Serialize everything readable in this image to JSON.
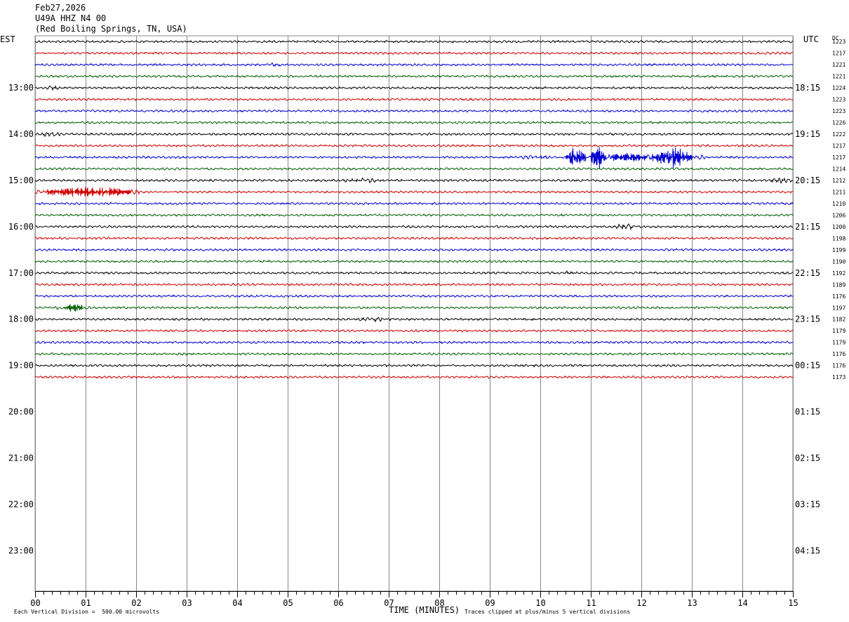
{
  "header": {
    "date": "Feb27,2026",
    "station": "U49A HHZ N4 00",
    "location": "(Red Boiling Springs, TN, USA)"
  },
  "left_tz_label": "EST",
  "right_tz_label": "UTC",
  "dc_label": "DC",
  "footer": {
    "xlabel": "TIME (MINUTES)",
    "scale_note": "Each Vertical Division =  500.00 microvolts",
    "clip_note": "Traces clipped at plus/minus 5 vertical divisions"
  },
  "colors": {
    "trace_cycle": [
      "#000000",
      "#d00000",
      "#0000d0",
      "#006000"
    ],
    "grid": "#888888"
  },
  "chart_data": {
    "type": "line",
    "title": "U49A HHZ N4 00",
    "xlabel": "TIME (MINUTES)",
    "x_ticks": [
      "00",
      "01",
      "02",
      "03",
      "04",
      "05",
      "06",
      "07",
      "08",
      "09",
      "10",
      "11",
      "12",
      "13",
      "14",
      "15"
    ],
    "xlim": [
      0,
      15
    ],
    "left_hour_labels": [
      {
        "row": 4,
        "label": "13:00"
      },
      {
        "row": 8,
        "label": "14:00"
      },
      {
        "row": 12,
        "label": "15:00"
      },
      {
        "row": 16,
        "label": "16:00"
      },
      {
        "row": 20,
        "label": "17:00"
      },
      {
        "row": 24,
        "label": "18:00"
      },
      {
        "row": 28,
        "label": "19:00"
      },
      {
        "row": 32,
        "label": "20:00"
      },
      {
        "row": 36,
        "label": "21:00"
      },
      {
        "row": 40,
        "label": "22:00"
      },
      {
        "row": 44,
        "label": "23:00"
      }
    ],
    "right_hour_labels": [
      {
        "row": 4,
        "label": "18:15"
      },
      {
        "row": 8,
        "label": "19:15"
      },
      {
        "row": 12,
        "label": "20:15"
      },
      {
        "row": 16,
        "label": "21:15"
      },
      {
        "row": 20,
        "label": "22:15"
      },
      {
        "row": 24,
        "label": "23:15"
      },
      {
        "row": 28,
        "label": "00:15"
      },
      {
        "row": 32,
        "label": "01:15"
      },
      {
        "row": 36,
        "label": "02:15"
      },
      {
        "row": 40,
        "label": "03:15"
      },
      {
        "row": 44,
        "label": "04:15"
      }
    ],
    "total_rows": 48,
    "dc_offsets": [
      "1223",
      "1217",
      "1221",
      "1221",
      "1224",
      "1223",
      "1223",
      "1226",
      "1222",
      "1217",
      "1217",
      "1214",
      "1212",
      "1211",
      "1210",
      "1206",
      "1200",
      "1198",
      "1199",
      "1190",
      "1192",
      "1189",
      "1176",
      "1197",
      "1182",
      "1179",
      "1179",
      "1176",
      "1176",
      "1173"
    ],
    "series": [
      {
        "row": 0,
        "amplitude": 1.0
      },
      {
        "row": 1,
        "amplitude": 1.0
      },
      {
        "row": 2,
        "amplitude": 1.0,
        "events": [
          {
            "start_min": 4.6,
            "end_min": 4.9,
            "amplitude": 2.0
          }
        ]
      },
      {
        "row": 3,
        "amplitude": 1.0
      },
      {
        "row": 4,
        "amplitude": 1.0,
        "events": [
          {
            "start_min": 0.2,
            "end_min": 0.5,
            "amplitude": 2.0
          }
        ]
      },
      {
        "row": 5,
        "amplitude": 1.0,
        "events": [
          {
            "start_min": 3.3,
            "end_min": 3.6,
            "amplitude": 1.8
          }
        ]
      },
      {
        "row": 6,
        "amplitude": 1.0
      },
      {
        "row": 7,
        "amplitude": 1.0
      },
      {
        "row": 8,
        "amplitude": 1.0,
        "events": [
          {
            "start_min": 0.0,
            "end_min": 0.6,
            "amplitude": 2.2
          }
        ]
      },
      {
        "row": 9,
        "amplitude": 1.0
      },
      {
        "row": 10,
        "amplitude": 1.0,
        "events": [
          {
            "start_min": 9.3,
            "end_min": 10.4,
            "amplitude": 1.8
          },
          {
            "start_min": 10.5,
            "end_min": 10.9,
            "amplitude": 7.0
          },
          {
            "start_min": 11.0,
            "end_min": 11.3,
            "amplitude": 9.0
          },
          {
            "start_min": 11.3,
            "end_min": 12.2,
            "amplitude": 4.0
          },
          {
            "start_min": 12.2,
            "end_min": 13.0,
            "amplitude": 8.0
          },
          {
            "start_min": 13.0,
            "end_min": 13.3,
            "amplitude": 2.5
          }
        ]
      },
      {
        "row": 11,
        "amplitude": 1.0
      },
      {
        "row": 12,
        "amplitude": 1.0,
        "events": [
          {
            "start_min": 6.0,
            "end_min": 6.9,
            "amplitude": 2.2
          },
          {
            "start_min": 14.5,
            "end_min": 15.0,
            "amplitude": 2.5
          }
        ]
      },
      {
        "row": 13,
        "amplitude": 1.0,
        "events": [
          {
            "start_min": 0.0,
            "end_min": 2.1,
            "amplitude": 4.0
          }
        ]
      },
      {
        "row": 14,
        "amplitude": 1.0
      },
      {
        "row": 15,
        "amplitude": 1.0
      },
      {
        "row": 16,
        "amplitude": 1.0,
        "events": [
          {
            "start_min": 11.4,
            "end_min": 12.0,
            "amplitude": 2.5
          }
        ]
      },
      {
        "row": 17,
        "amplitude": 1.0
      },
      {
        "row": 18,
        "amplitude": 1.0
      },
      {
        "row": 19,
        "amplitude": 1.0
      },
      {
        "row": 20,
        "amplitude": 1.0,
        "events": [
          {
            "start_min": 10.4,
            "end_min": 10.7,
            "amplitude": 1.6
          }
        ]
      },
      {
        "row": 21,
        "amplitude": 1.0
      },
      {
        "row": 22,
        "amplitude": 1.0
      },
      {
        "row": 23,
        "amplitude": 1.0,
        "events": [
          {
            "start_min": 0.4,
            "end_min": 1.1,
            "amplitude": 3.0
          }
        ]
      },
      {
        "row": 24,
        "amplitude": 1.0,
        "events": [
          {
            "start_min": 6.3,
            "end_min": 7.1,
            "amplitude": 2.0
          }
        ]
      },
      {
        "row": 25,
        "amplitude": 1.0
      },
      {
        "row": 26,
        "amplitude": 1.0
      },
      {
        "row": 27,
        "amplitude": 1.0
      },
      {
        "row": 28,
        "amplitude": 1.0
      },
      {
        "row": 29,
        "amplitude": 1.0
      }
    ]
  }
}
